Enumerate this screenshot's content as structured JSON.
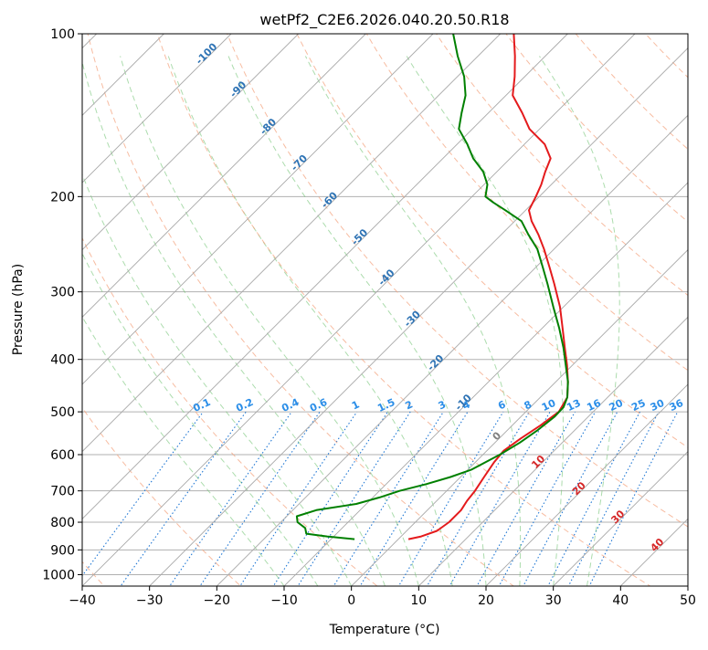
{
  "chart_data": {
    "type": "line",
    "chart_kind": "skew-t log-p",
    "title": "wetPf2_C2E6.2026.040.20.50.R18",
    "xlabel": "Temperature (°C)",
    "ylabel": "Pressure (hPa)",
    "xlim": [
      -40,
      50
    ],
    "ylim": [
      1050,
      100
    ],
    "x_ticks": [
      -40,
      -30,
      -20,
      -10,
      0,
      10,
      20,
      30,
      40,
      50
    ],
    "y_ticks": [
      1000,
      900,
      800,
      700,
      600,
      500,
      400,
      300,
      200,
      100
    ],
    "skew_per_decade_deg": 45,
    "isotherms_deg": [
      -150,
      -140,
      -130,
      -120,
      -110,
      -100,
      -90,
      -80,
      -70,
      -60,
      -50,
      -40,
      -30,
      -20,
      -10,
      0,
      10,
      20,
      30,
      40,
      50
    ],
    "dry_adiabats_thetaC": [
      -40,
      -20,
      0,
      20,
      40,
      60,
      80,
      100,
      120,
      140,
      160,
      180,
      200,
      220,
      240
    ],
    "moist_adiabats_startC": [
      -10,
      -5,
      0,
      5,
      10,
      15,
      20,
      25,
      30,
      35
    ],
    "mixing_ratio_labels": [
      "0.1",
      "0.2",
      "0.4",
      "0.6",
      "1",
      "1.5",
      "2",
      "3",
      "4",
      "6",
      "8",
      "10",
      "13",
      "16",
      "20",
      "25",
      "30",
      "36"
    ],
    "mixing_ratio_values": [
      0.1,
      0.2,
      0.4,
      0.6,
      1,
      1.5,
      2,
      3,
      4,
      6,
      8,
      10,
      13,
      16,
      20,
      25,
      30,
      36
    ],
    "isotherm_labels_blue": [
      "-100",
      "-90",
      "-80",
      "-70",
      "-60",
      "-50",
      "-40",
      "-30",
      "-20",
      "-10"
    ],
    "isotherm_labels_red": [
      "10",
      "20",
      "30",
      "40"
    ],
    "isotherm_label_zero": "0",
    "series": [
      {
        "name": "temperature",
        "color": "#e41a1c",
        "p": [
          860,
          850,
          830,
          800,
          760,
          730,
          700,
          660,
          620,
          590,
          560,
          530,
          500,
          470,
          440,
          410,
          380,
          350,
          320,
          290,
          270,
          250,
          235,
          222,
          212,
          200,
          190,
          180,
          170,
          160,
          150,
          140,
          130,
          120,
          110,
          100
        ],
        "t": [
          1.5,
          3.0,
          4.5,
          5.0,
          5.0,
          4.5,
          4.2,
          3.5,
          2.8,
          2.5,
          3.2,
          4.2,
          4.9,
          4.0,
          1.8,
          -0.8,
          -3.8,
          -7.0,
          -10.5,
          -14.8,
          -18.0,
          -21.5,
          -24.5,
          -27.5,
          -29.5,
          -30.5,
          -31.5,
          -32.8,
          -34.0,
          -37.0,
          -41.5,
          -45.0,
          -49.0,
          -51.5,
          -54.5,
          -58.0
        ]
      },
      {
        "name": "dewpoint",
        "color": "#008000",
        "p": [
          860,
          850,
          840,
          820,
          800,
          780,
          760,
          740,
          720,
          700,
          680,
          660,
          640,
          620,
          600,
          570,
          540,
          510,
          490,
          470,
          440,
          410,
          380,
          350,
          320,
          290,
          270,
          250,
          235,
          222,
          212,
          205,
          200,
          190,
          180,
          170,
          160,
          150,
          140,
          130,
          120,
          110,
          100
        ],
        "t": [
          -6.5,
          -11,
          -14.5,
          -15.5,
          -17.5,
          -18.5,
          -16.5,
          -11.5,
          -9,
          -7,
          -4,
          -1.5,
          0.5,
          1.5,
          2.5,
          3.7,
          4.5,
          5.0,
          4.9,
          4.0,
          1.8,
          -1.0,
          -4.0,
          -7.5,
          -11.5,
          -15.8,
          -19.0,
          -22.5,
          -26.0,
          -29.0,
          -33.0,
          -36.0,
          -38.0,
          -39.5,
          -42.0,
          -45.5,
          -48.5,
          -52.0,
          -54.0,
          -56.0,
          -59.0,
          -63.0,
          -67.0
        ]
      }
    ]
  }
}
